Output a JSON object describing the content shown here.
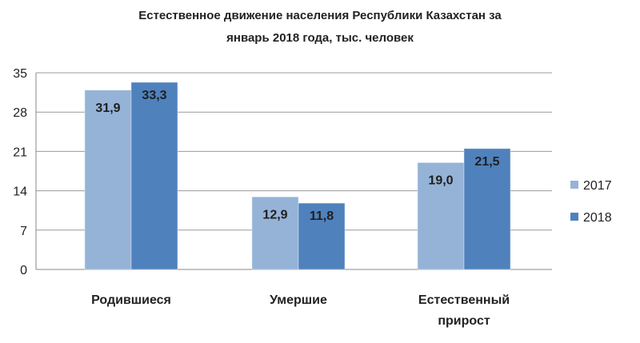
{
  "chart_data": {
    "type": "bar",
    "title_lines": [
      "Естественное  движение населения Республики  Казахстан  за",
      "январь 2018 года, тыс. человек"
    ],
    "categories": [
      [
        "Родившиеся"
      ],
      [
        "Умершие"
      ],
      [
        "Естественный",
        "прирост"
      ]
    ],
    "series": [
      {
        "name": "2017",
        "values": [
          31.9,
          12.9,
          19.0
        ],
        "labels": [
          "31,9",
          "12,9",
          "19,0"
        ],
        "color": "#95B3D7"
      },
      {
        "name": "2018",
        "values": [
          33.3,
          11.8,
          21.5
        ],
        "labels": [
          "33,3",
          "11,8",
          "21,5"
        ],
        "color": "#4F81BD"
      }
    ],
    "yticks": [
      0,
      7,
      14,
      21,
      28,
      35
    ],
    "ylim": [
      0,
      35
    ],
    "grid": true,
    "legend_position": "right",
    "xlabel": "",
    "ylabel": ""
  }
}
